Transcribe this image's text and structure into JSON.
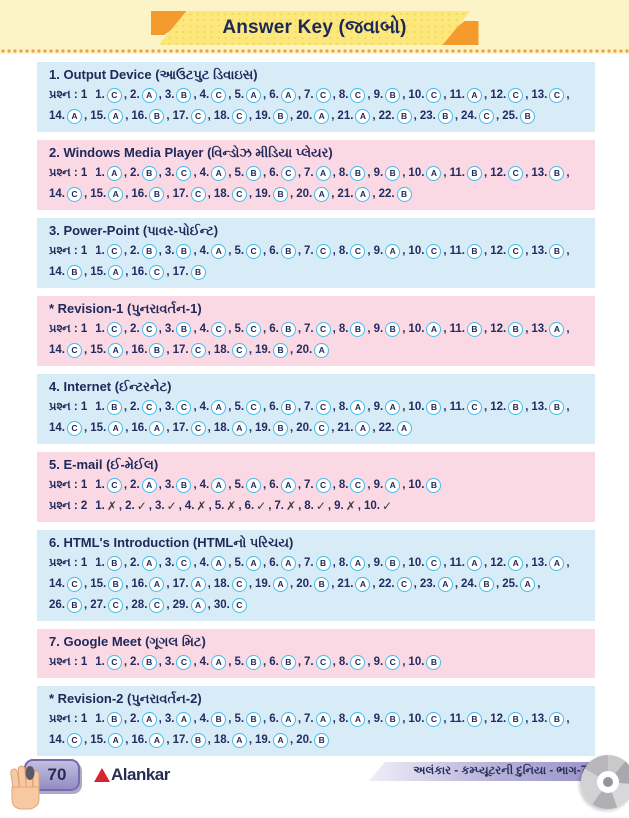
{
  "banner": {
    "title": "Answer Key (જવાબો)"
  },
  "footer": {
    "page_number": "70",
    "publisher": "Alankar",
    "book_title": "અલંકાર - કમ્પ્યૂટરની દુનિયા - ભાગ-7"
  },
  "colors": {
    "header_band": "#fcf3c7",
    "banner_yellow": "#fde87d",
    "banner_orange": "#f59b2e",
    "section_blue": "#d8ecf8",
    "section_pink": "#fbd9e4",
    "circle_border": "#41bdec",
    "text_navy": "#20295a",
    "logo_red": "#d6252e",
    "footer_purple": "#9a93c8"
  },
  "sections": [
    {
      "title": "1. Output Device (આઉટપુટ ડિવાઇસ)",
      "bg": "blue",
      "rows": [
        {
          "label": "પ્રશ્ન : 1",
          "type": "choice",
          "answers": [
            "C",
            "A",
            "B",
            "C",
            "A",
            "A",
            "C",
            "C",
            "B",
            "C",
            "A",
            "C",
            "C",
            "A",
            "A",
            "B",
            "C",
            "C",
            "B",
            "A",
            "A",
            "B",
            "B",
            "C",
            "B"
          ]
        }
      ]
    },
    {
      "title": "2. Windows Media Player (વિન્ડોઝ મીડિયા પ્લેયર)",
      "bg": "pink",
      "rows": [
        {
          "label": "પ્રશ્ન : 1",
          "type": "choice",
          "answers": [
            "A",
            "B",
            "C",
            "A",
            "B",
            "C",
            "A",
            "B",
            "B",
            "A",
            "B",
            "C",
            "B",
            "C",
            "A",
            "B",
            "C",
            "C",
            "B",
            "A",
            "A",
            "B"
          ]
        }
      ]
    },
    {
      "title": "3. Power-Point (પાવર-પોઈન્ટ)",
      "bg": "blue",
      "rows": [
        {
          "label": "પ્રશ્ન : 1",
          "type": "choice",
          "answers": [
            "C",
            "B",
            "B",
            "A",
            "C",
            "B",
            "C",
            "C",
            "A",
            "C",
            "B",
            "C",
            "B",
            "B",
            "A",
            "C",
            "B"
          ]
        }
      ]
    },
    {
      "title": "* Revision-1 (પુનરાવર્તન-1)",
      "bg": "pink",
      "rows": [
        {
          "label": "પ્રશ્ન : 1",
          "type": "choice",
          "answers": [
            "C",
            "C",
            "B",
            "C",
            "C",
            "B",
            "C",
            "B",
            "B",
            "A",
            "B",
            "B",
            "A",
            "C",
            "A",
            "B",
            "C",
            "C",
            "B",
            "A"
          ]
        }
      ]
    },
    {
      "title": "4. Internet (ઈન્ટરનેટ)",
      "bg": "blue",
      "rows": [
        {
          "label": "પ્રશ્ન : 1",
          "type": "choice",
          "answers": [
            "B",
            "C",
            "C",
            "A",
            "C",
            "B",
            "C",
            "A",
            "A",
            "B",
            "C",
            "B",
            "B",
            "C",
            "A",
            "A",
            "C",
            "A",
            "B",
            "C",
            "A",
            "A"
          ]
        }
      ]
    },
    {
      "title": "5. E-mail (ઈ-મેઈલ)",
      "bg": "pink",
      "rows": [
        {
          "label": "પ્રશ્ન : 1",
          "type": "choice",
          "answers": [
            "C",
            "A",
            "B",
            "A",
            "A",
            "A",
            "C",
            "C",
            "A",
            "B"
          ]
        },
        {
          "label": "પ્રશ્ન : 2",
          "type": "marks",
          "answers": [
            "✗",
            "✓",
            "✓",
            "✗",
            "✗",
            "✓",
            "✗",
            "✓",
            "✗",
            "✓"
          ]
        }
      ]
    },
    {
      "title": "6. HTML's Introduction (HTMLનો પરિચય)",
      "bg": "blue",
      "rows": [
        {
          "label": "પ્રશ્ન : 1",
          "type": "choice",
          "answers": [
            "B",
            "A",
            "C",
            "A",
            "A",
            "A",
            "B",
            "A",
            "B",
            "C",
            "A",
            "A",
            "A",
            "C",
            "B",
            "A",
            "A",
            "C",
            "A",
            "B",
            "A",
            "C",
            "A",
            "B",
            "A",
            "B",
            "C",
            "C",
            "A",
            "C"
          ]
        }
      ]
    },
    {
      "title": "7. Google Meet (ગૂગલ મિટ)",
      "bg": "pink",
      "rows": [
        {
          "label": "પ્રશ્ન : 1",
          "type": "choice",
          "answers": [
            "C",
            "B",
            "C",
            "A",
            "B",
            "B",
            "C",
            "C",
            "C",
            "B"
          ]
        }
      ]
    },
    {
      "title": "* Revision-2 (પુનરાવર્તન-2)",
      "bg": "blue",
      "rows": [
        {
          "label": "પ્રશ્ન : 1",
          "type": "choice",
          "answers": [
            "B",
            "A",
            "A",
            "B",
            "B",
            "A",
            "A",
            "A",
            "B",
            "C",
            "B",
            "B",
            "B",
            "C",
            "A",
            "A",
            "B",
            "A",
            "A",
            "B"
          ]
        }
      ]
    }
  ]
}
